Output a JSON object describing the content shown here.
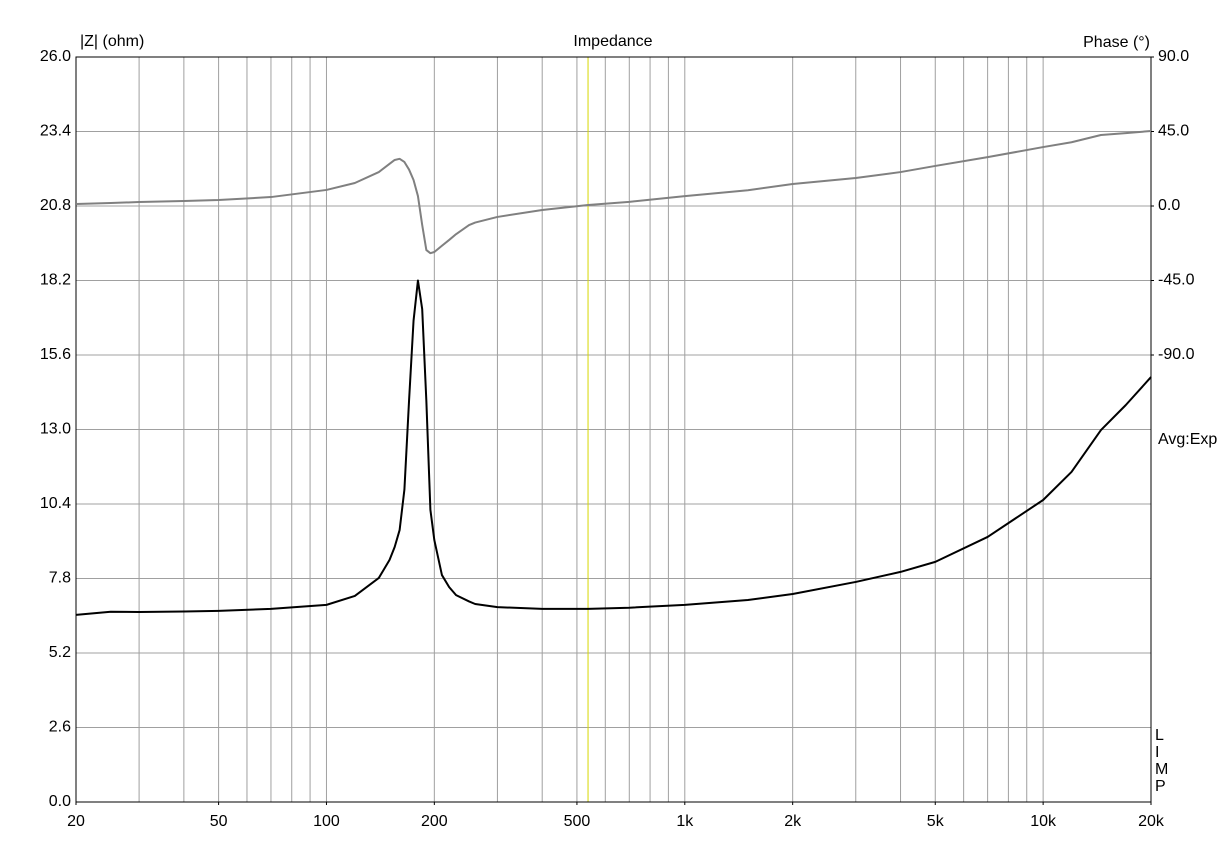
{
  "chart_data": {
    "type": "line",
    "title": "Impedance",
    "ylabel": "|Z| (ohm)",
    "y2label": "Phase (°)",
    "annotation": "Avg:Exp",
    "brand": "LIMP",
    "xscale": "log",
    "x": [
      20,
      25,
      30,
      40,
      50,
      70,
      100,
      120,
      140,
      150,
      155,
      160,
      165,
      170,
      175,
      180,
      185,
      190,
      195,
      200,
      210,
      220,
      230,
      250,
      260,
      300,
      400,
      537,
      700,
      1000,
      1500,
      2000,
      3000,
      4000,
      5000,
      7000,
      10000,
      12000,
      14500,
      17000,
      20000
    ],
    "series": [
      {
        "name": "|Z|",
        "color": "#000000",
        "axis": "y",
        "values": [
          6.53,
          6.64,
          6.63,
          6.65,
          6.67,
          6.74,
          6.88,
          7.19,
          7.82,
          8.45,
          8.9,
          9.49,
          10.9,
          14.0,
          16.8,
          18.2,
          17.2,
          14.0,
          10.2,
          9.14,
          7.92,
          7.5,
          7.22,
          7.0,
          6.91,
          6.8,
          6.74,
          6.74,
          6.78,
          6.88,
          7.05,
          7.26,
          7.68,
          8.03,
          8.38,
          9.25,
          10.54,
          11.52,
          12.98,
          13.85,
          14.83
        ]
      },
      {
        "name": "Phase",
        "color": "#808080",
        "axis": "y2",
        "values": [
          1.2,
          1.8,
          2.4,
          3.0,
          3.6,
          5.4,
          9.7,
          13.9,
          20.5,
          25.5,
          27.8,
          28.5,
          26.6,
          22,
          15.7,
          6,
          -11.5,
          -26.6,
          -28.5,
          -27.8,
          -24,
          -20.5,
          -17,
          -11.5,
          -10,
          -6.6,
          -2.4,
          0.6,
          2.5,
          6.0,
          9.5,
          13.3,
          16.9,
          20.5,
          24.2,
          29.5,
          35.6,
          38.5,
          42.9,
          44,
          45.3
        ]
      }
    ],
    "xlim": [
      20,
      20000
    ],
    "xticks": [
      20,
      50,
      100,
      200,
      500,
      {
        "value": 1000,
        "label": "1k"
      },
      {
        "value": 2000,
        "label": "2k"
      },
      {
        "value": 5000,
        "label": "5k"
      },
      {
        "value": 10000,
        "label": "10k"
      },
      {
        "value": 20000,
        "label": "20k"
      }
    ],
    "xgrid": [
      20,
      30,
      40,
      50,
      60,
      70,
      80,
      90,
      100,
      200,
      300,
      400,
      500,
      600,
      700,
      800,
      900,
      1000,
      2000,
      3000,
      4000,
      5000,
      6000,
      7000,
      8000,
      9000,
      10000,
      20000
    ],
    "ylim": [
      0,
      26
    ],
    "yticks": [
      {
        "value": 0,
        "label": "0.0"
      },
      2.6,
      5.2,
      7.8,
      10.4,
      {
        "value": 13,
        "label": "13.0"
      },
      15.6,
      18.2,
      20.8,
      23.4,
      {
        "value": 26,
        "label": "26.0"
      }
    ],
    "y2lim": [
      -360,
      90
    ],
    "y2ticks": [
      {
        "value": -90,
        "label": "-90.0"
      },
      {
        "value": -45,
        "label": "-45.0"
      },
      {
        "value": 0,
        "label": "0.0"
      },
      {
        "value": 45,
        "label": "45.0"
      },
      {
        "value": 90,
        "label": "90.0"
      }
    ],
    "grid": true,
    "grid_color": "#a0a0a0",
    "cursor": {
      "x": 537,
      "color": "#d8d800"
    }
  }
}
